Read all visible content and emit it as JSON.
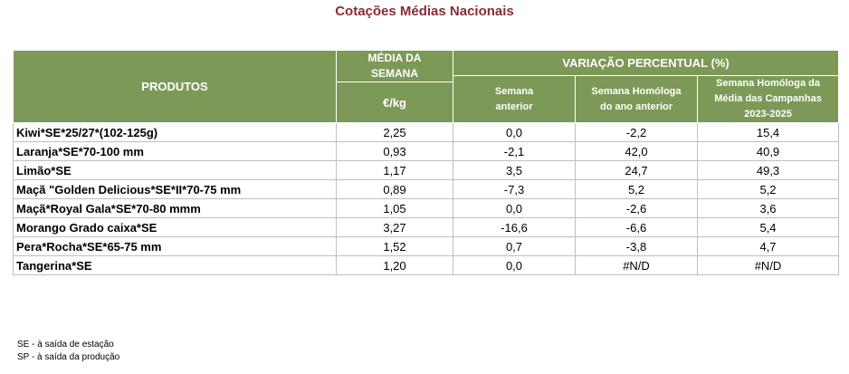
{
  "title": "Cotações Médias Nacionais",
  "header": {
    "produtos": "PRODUTOS",
    "media_line1": "MÉDIA DA",
    "media_line2": "SEMANA",
    "unit": "€/kg",
    "variacao": "VARIAÇÃO PERCENTUAL (%)",
    "sub1_line1": "Semana",
    "sub1_line2": "anterior",
    "sub2_line1": "Semana Homóloga",
    "sub2_line2": "do ano anterior",
    "sub3_line1": "Semana Homóloga da",
    "sub3_line2": "Média das Campanhas",
    "sub3_line3": "2023-2025"
  },
  "rows": [
    {
      "produto": "Kiwi*SE*25/27*(102-125g)",
      "media": "2,25",
      "anterior": "0,0",
      "homologa": "-2,2",
      "campanhas": "15,4"
    },
    {
      "produto": "Laranja*SE*70-100 mm",
      "media": "0,93",
      "anterior": "-2,1",
      "homologa": "42,0",
      "campanhas": "40,9"
    },
    {
      "produto": "Limão*SE",
      "media": "1,17",
      "anterior": "3,5",
      "homologa": "24,7",
      "campanhas": "49,3"
    },
    {
      "produto": "Maçã \"Golden Delicious*SE*II*70-75 mm",
      "media": "0,89",
      "anterior": "-7,3",
      "homologa": "5,2",
      "campanhas": "5,2"
    },
    {
      "produto": "Maçã*Royal Gala*SE*70-80 mmm",
      "media": "1,05",
      "anterior": "0,0",
      "homologa": "-2,6",
      "campanhas": "3,6"
    },
    {
      "produto": "Morango Grado caixa*SE",
      "media": "3,27",
      "anterior": "-16,6",
      "homologa": "-6,6",
      "campanhas": "5,4"
    },
    {
      "produto": "Pera*Rocha*SE*65-75 mm",
      "media": "1,52",
      "anterior": "0,7",
      "homologa": "-3,8",
      "campanhas": "4,7"
    },
    {
      "produto": "Tangerina*SE",
      "media": "1,20",
      "anterior": "0,0",
      "homologa": "#N/D",
      "campanhas": "#N/D"
    }
  ],
  "notes": [
    "SE - à saída de estação",
    "SP - à saída da produção"
  ]
}
